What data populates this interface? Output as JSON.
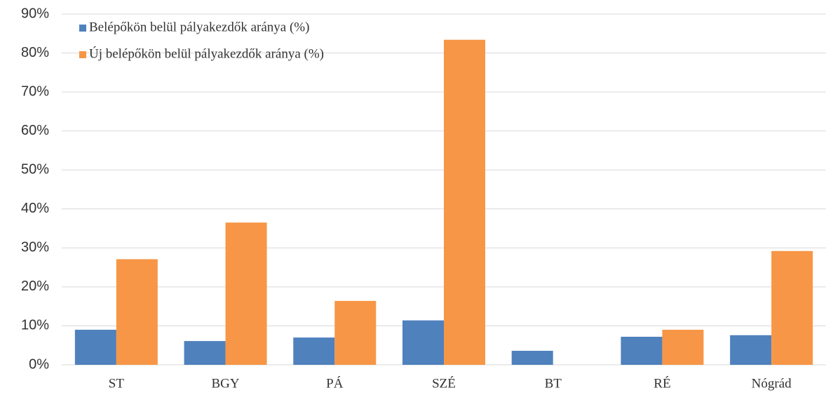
{
  "chart_data": {
    "type": "bar",
    "categories": [
      "ST",
      "BGY",
      "PÁ",
      "SZÉ",
      "BT",
      "RÉ",
      "Nógrád"
    ],
    "series": [
      {
        "name": "Belépőkön belül pályakezdők aránya (%)",
        "color": "#4f81bd",
        "values": [
          9.0,
          6.1,
          7.0,
          11.4,
          3.6,
          7.2,
          7.6
        ]
      },
      {
        "name": "Új belépőkön belül pályakezdők aránya (%)",
        "color": "#f79646",
        "values": [
          27.1,
          36.5,
          16.4,
          83.4,
          0,
          9.0,
          29.2
        ]
      }
    ],
    "ylim": [
      0,
      90
    ],
    "yticks": [
      {
        "value": 0,
        "label": "0%"
      },
      {
        "value": 10,
        "label": "10%"
      },
      {
        "value": 20,
        "label": "20%"
      },
      {
        "value": 30,
        "label": "30%"
      },
      {
        "value": 40,
        "label": "40%"
      },
      {
        "value": 50,
        "label": "50%"
      },
      {
        "value": 60,
        "label": "60%"
      },
      {
        "value": 70,
        "label": "70%"
      },
      {
        "value": 80,
        "label": "80%"
      },
      {
        "value": 90,
        "label": "90%"
      }
    ],
    "grid": true,
    "legend": "top-left"
  }
}
